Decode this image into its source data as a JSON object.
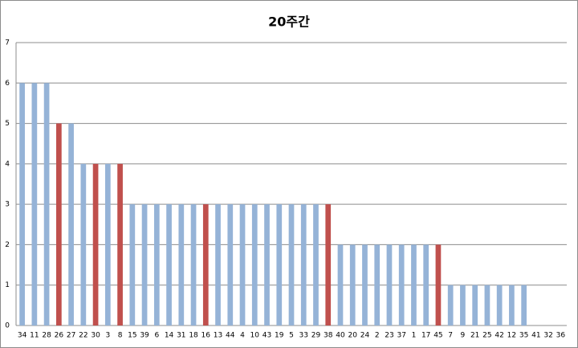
{
  "chart_data": {
    "type": "bar",
    "title": "20주간",
    "categories": [
      "34",
      "11",
      "28",
      "26",
      "27",
      "22",
      "30",
      "3",
      "8",
      "15",
      "39",
      "6",
      "14",
      "31",
      "18",
      "16",
      "13",
      "44",
      "4",
      "10",
      "43",
      "19",
      "5",
      "33",
      "29",
      "38",
      "40",
      "20",
      "24",
      "2",
      "23",
      "37",
      "1",
      "17",
      "45",
      "7",
      "9",
      "21",
      "25",
      "42",
      "12",
      "35",
      "41",
      "32",
      "36"
    ],
    "values": [
      6,
      6,
      6,
      5,
      5,
      4,
      4,
      4,
      4,
      3,
      3,
      3,
      3,
      3,
      3,
      3,
      3,
      3,
      3,
      3,
      3,
      3,
      3,
      3,
      3,
      3,
      2,
      2,
      2,
      2,
      2,
      2,
      2,
      2,
      2,
      1,
      1,
      1,
      1,
      1,
      1,
      1,
      0,
      0,
      0
    ],
    "colors": [
      "#95b3d7",
      "#95b3d7",
      "#95b3d7",
      "#c0504d",
      "#95b3d7",
      "#95b3d7",
      "#c0504d",
      "#95b3d7",
      "#c0504d",
      "#95b3d7",
      "#95b3d7",
      "#95b3d7",
      "#95b3d7",
      "#95b3d7",
      "#95b3d7",
      "#c0504d",
      "#95b3d7",
      "#95b3d7",
      "#95b3d7",
      "#95b3d7",
      "#95b3d7",
      "#95b3d7",
      "#95b3d7",
      "#95b3d7",
      "#95b3d7",
      "#c0504d",
      "#95b3d7",
      "#95b3d7",
      "#95b3d7",
      "#95b3d7",
      "#95b3d7",
      "#95b3d7",
      "#95b3d7",
      "#95b3d7",
      "#c0504d",
      "#95b3d7",
      "#95b3d7",
      "#95b3d7",
      "#95b3d7",
      "#95b3d7",
      "#95b3d7",
      "#95b3d7",
      "#95b3d7",
      "#95b3d7",
      "#95b3d7"
    ],
    "ylim": [
      0,
      7
    ],
    "yticks": [
      0,
      1,
      2,
      3,
      4,
      5,
      6,
      7
    ],
    "grid": true
  }
}
